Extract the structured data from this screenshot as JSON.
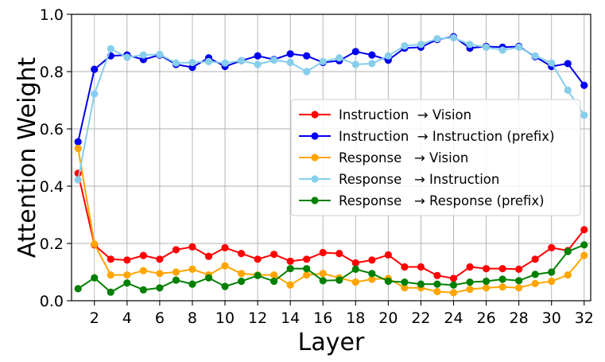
{
  "chart_data": {
    "type": "line",
    "xlabel": "Layer",
    "ylabel": "Attention Weight",
    "xlim": [
      0.6,
      32.4
    ],
    "ylim": [
      0,
      1.0
    ],
    "xticks": [
      2,
      4,
      6,
      8,
      10,
      12,
      14,
      16,
      18,
      20,
      22,
      24,
      26,
      28,
      30,
      32
    ],
    "yticks": [
      0.0,
      0.2,
      0.4,
      0.6,
      0.8,
      1.0
    ],
    "ytick_labels": [
      "0.0",
      "0.2",
      "0.4",
      "0.6",
      "0.8",
      "1.0"
    ],
    "grid": true,
    "legend_position": "center-right",
    "x": [
      1,
      2,
      3,
      4,
      5,
      6,
      7,
      8,
      9,
      10,
      11,
      12,
      13,
      14,
      15,
      16,
      17,
      18,
      19,
      20,
      21,
      22,
      23,
      24,
      25,
      26,
      27,
      28,
      29,
      30,
      31,
      32
    ],
    "series": [
      {
        "name": "Instruction  → Vision",
        "color": "#ff0000",
        "values": [
          0.445,
          0.195,
          0.145,
          0.142,
          0.158,
          0.145,
          0.178,
          0.188,
          0.155,
          0.185,
          0.165,
          0.145,
          0.162,
          0.138,
          0.145,
          0.168,
          0.165,
          0.132,
          0.142,
          0.16,
          0.118,
          0.118,
          0.088,
          0.078,
          0.118,
          0.112,
          0.112,
          0.11,
          0.145,
          0.185,
          0.175,
          0.248
        ]
      },
      {
        "name": "Instruction  → Instruction (prefix)",
        "color": "#0000ee",
        "values": [
          0.555,
          0.808,
          0.855,
          0.858,
          0.842,
          0.858,
          0.825,
          0.815,
          0.848,
          0.818,
          0.838,
          0.855,
          0.842,
          0.862,
          0.855,
          0.832,
          0.838,
          0.87,
          0.858,
          0.84,
          0.882,
          0.885,
          0.912,
          0.922,
          0.882,
          0.888,
          0.885,
          0.888,
          0.852,
          0.818,
          0.828,
          0.752
        ]
      },
      {
        "name": "Response   → Vision",
        "color": "#ffa500",
        "values": [
          0.532,
          0.198,
          0.09,
          0.09,
          0.105,
          0.095,
          0.1,
          0.11,
          0.09,
          0.122,
          0.095,
          0.09,
          0.09,
          0.055,
          0.09,
          0.095,
          0.08,
          0.065,
          0.075,
          0.078,
          0.045,
          0.045,
          0.032,
          0.028,
          0.04,
          0.045,
          0.048,
          0.045,
          0.06,
          0.068,
          0.09,
          0.158
        ]
      },
      {
        "name": "Response   → Instruction",
        "color": "#87ceeb",
        "values": [
          0.422,
          0.722,
          0.88,
          0.85,
          0.858,
          0.86,
          0.83,
          0.832,
          0.835,
          0.83,
          0.838,
          0.825,
          0.84,
          0.832,
          0.8,
          0.835,
          0.848,
          0.825,
          0.828,
          0.855,
          0.89,
          0.895,
          0.915,
          0.918,
          0.895,
          0.885,
          0.875,
          0.885,
          0.855,
          0.83,
          0.735,
          0.648
        ]
      },
      {
        "name": "Response   → Response (prefix)",
        "color": "#008000",
        "values": [
          0.042,
          0.08,
          0.03,
          0.062,
          0.038,
          0.045,
          0.072,
          0.058,
          0.08,
          0.05,
          0.068,
          0.088,
          0.068,
          0.112,
          0.112,
          0.07,
          0.072,
          0.11,
          0.095,
          0.068,
          0.065,
          0.058,
          0.058,
          0.055,
          0.065,
          0.068,
          0.075,
          0.07,
          0.092,
          0.1,
          0.172,
          0.195
        ]
      }
    ]
  }
}
